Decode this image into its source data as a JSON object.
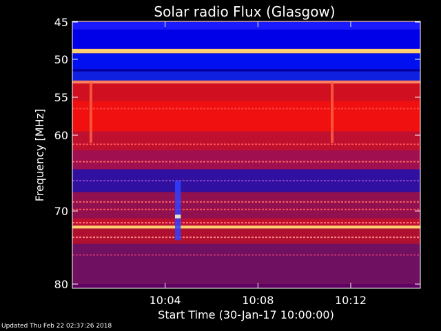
{
  "chart_data": {
    "type": "heatmap",
    "title": "Solar radio Flux (Glasgow)",
    "xlabel": "Start Time (30-Jan-17 10:00:00)",
    "ylabel": "Frequency [MHz]",
    "xlim_minutes": [
      0,
      15
    ],
    "ylim": [
      45,
      80
    ],
    "y_inverted": true,
    "x_ticks": [
      {
        "minutes": 4,
        "label": "10:04"
      },
      {
        "minutes": 8,
        "label": "10:08"
      },
      {
        "minutes": 12,
        "label": "10:12"
      }
    ],
    "y_ticks": [
      {
        "value": 45,
        "label": "45"
      },
      {
        "value": 50,
        "label": "50"
      },
      {
        "value": 55,
        "label": "55"
      },
      {
        "value": 60,
        "label": "60"
      },
      {
        "value": 70,
        "label": "70"
      },
      {
        "value": 80,
        "label": "80"
      }
    ],
    "bands": [
      {
        "from": 45,
        "to": 46,
        "color": "#1a1aff"
      },
      {
        "from": 46,
        "to": 48.6,
        "color": "#0000e8"
      },
      {
        "from": 48.6,
        "to": 49.2,
        "color": "#ffd070"
      },
      {
        "from": 49.2,
        "to": 51.3,
        "color": "#0010f0"
      },
      {
        "from": 51.3,
        "to": 51.6,
        "color": "#0000a0"
      },
      {
        "from": 51.6,
        "to": 52.8,
        "color": "#1020e0"
      },
      {
        "from": 52.8,
        "to": 53.2,
        "color": "#ff8060"
      },
      {
        "from": 53.2,
        "to": 55.5,
        "color": "#d01020"
      },
      {
        "from": 55.5,
        "to": 59.5,
        "color": "#f01010"
      },
      {
        "from": 59.5,
        "to": 62.0,
        "color": "#c01030"
      },
      {
        "from": 62.0,
        "to": 64.5,
        "color": "#a01050"
      },
      {
        "from": 64.5,
        "to": 67.5,
        "color": "#3010a0"
      },
      {
        "from": 67.5,
        "to": 71.0,
        "color": "#901050"
      },
      {
        "from": 71.0,
        "to": 72.0,
        "color": "#c01030"
      },
      {
        "from": 72.0,
        "to": 72.4,
        "color": "#ffd070"
      },
      {
        "from": 72.4,
        "to": 74.5,
        "color": "#b01030"
      },
      {
        "from": 74.5,
        "to": 80.0,
        "color": "#701060"
      }
    ],
    "lines": [
      {
        "freq": 56.5,
        "color": "#ff4040"
      },
      {
        "freq": 61.2,
        "color": "#ff5050"
      },
      {
        "freq": 63.5,
        "color": "#ff6060"
      },
      {
        "freq": 66.0,
        "color": "#8040c0"
      },
      {
        "freq": 68.8,
        "color": "#ff6060"
      },
      {
        "freq": 69.8,
        "color": "#ff5050"
      },
      {
        "freq": 71.6,
        "color": "#ff7070"
      },
      {
        "freq": 73.6,
        "color": "#ff8080"
      },
      {
        "freq": 76.0,
        "color": "#c03070"
      }
    ],
    "spikes": [
      {
        "minutes": 0.8,
        "from": 53,
        "to": 61,
        "color": "#ff6040"
      },
      {
        "minutes": 11.2,
        "from": 53,
        "to": 61,
        "color": "#ff6040"
      },
      {
        "minutes": 4.55,
        "from": 66,
        "to": 74,
        "color": "#3040ff",
        "width_minutes": 0.25
      },
      {
        "minutes": 4.55,
        "from": 70.5,
        "to": 71.0,
        "color": "#ffffc0",
        "width_minutes": 0.25
      }
    ]
  },
  "footer": {
    "updated": "Updated Thu Feb 22 02:37:26 2018"
  }
}
